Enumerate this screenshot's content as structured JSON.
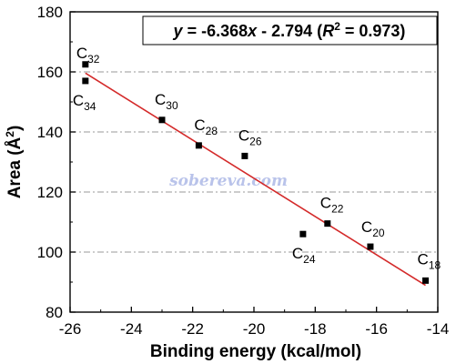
{
  "chart_data": {
    "type": "scatter",
    "title": "",
    "xlabel": "Binding energy (kcal/mol)",
    "ylabel": {
      "base": "Area (Å",
      "sup": "2",
      "close": ")"
    },
    "xlim": [
      -26,
      -14
    ],
    "ylim": [
      80,
      180
    ],
    "xticks": [
      "-26",
      "-24",
      "-22",
      "-20",
      "-18",
      "-16",
      "-14"
    ],
    "yticks": [
      "80",
      "100",
      "120",
      "140",
      "160",
      "180"
    ],
    "grid": "horizontal dash-dot",
    "points": [
      {
        "label_base": "C",
        "label_sub": "32",
        "x": -25.5,
        "y": 162.5
      },
      {
        "label_base": "C",
        "label_sub": "34",
        "x": -25.5,
        "y": 157.0
      },
      {
        "label_base": "C",
        "label_sub": "30",
        "x": -23.0,
        "y": 144.0
      },
      {
        "label_base": "C",
        "label_sub": "28",
        "x": -21.8,
        "y": 135.5
      },
      {
        "label_base": "C",
        "label_sub": "26",
        "x": -20.3,
        "y": 132.0
      },
      {
        "label_base": "C",
        "label_sub": "24",
        "x": -18.4,
        "y": 106.0
      },
      {
        "label_base": "C",
        "label_sub": "22",
        "x": -17.6,
        "y": 109.5
      },
      {
        "label_base": "C",
        "label_sub": "20",
        "x": -16.2,
        "y": 101.8
      },
      {
        "label_base": "C",
        "label_sub": "18",
        "x": -14.4,
        "y": 90.5
      }
    ],
    "fit": {
      "slope": -6.368,
      "intercept": -2.794,
      "x_range": [
        -25.5,
        -14.4
      ],
      "color": "#d42a2a",
      "equation": {
        "y": "y",
        "mid1": " = -6.368",
        "x": "x",
        "mid2": " - 2.794 (",
        "r": "R",
        "r_sup": "2",
        "tail": " = 0.973)"
      }
    },
    "watermark": "sobereva.com",
    "colors": {
      "marker": "#000000",
      "fit_line": "#d42a2a",
      "grid": "#9a9a9a",
      "watermark": "#b9c3ea"
    }
  }
}
